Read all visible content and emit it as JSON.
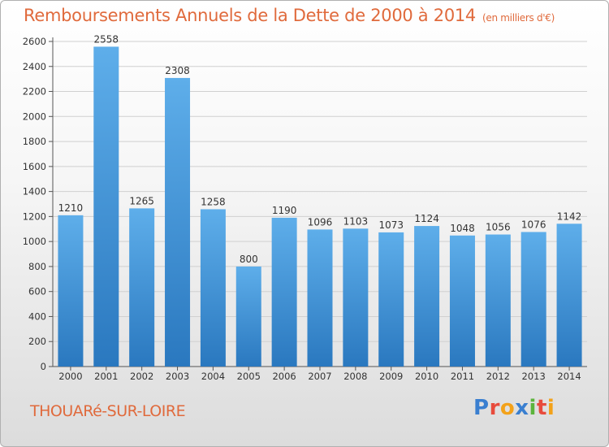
{
  "header": {
    "title": "Remboursements Annuels de la Dette de 2000 à 2014",
    "subtitle": "(en milliers d'€)"
  },
  "footer": {
    "commune": "THOUARé-SUR-LOIRE",
    "logo_letters": [
      "P",
      "r",
      "o",
      "x",
      "i",
      "t",
      "i"
    ]
  },
  "colors": {
    "bar_top": "#5eaeea",
    "bar_bottom": "#2a78bf",
    "title": "#e06a3c"
  },
  "chart_data": {
    "type": "bar",
    "categories": [
      "2000",
      "2001",
      "2002",
      "2003",
      "2004",
      "2005",
      "2006",
      "2007",
      "2008",
      "2009",
      "2010",
      "2011",
      "2012",
      "2013",
      "2014"
    ],
    "values": [
      1210,
      2558,
      1265,
      2308,
      1258,
      800,
      1190,
      1096,
      1103,
      1073,
      1124,
      1048,
      1056,
      1076,
      1142
    ],
    "data_labels": [
      "1210",
      "2558",
      "1265",
      "2308",
      "1258",
      "800",
      "1190",
      "1096",
      "1103",
      "1073",
      "1124",
      "1048",
      "1056",
      "1076",
      "1142"
    ],
    "yticks": [
      "0",
      "200",
      "400",
      "600",
      "800",
      "1000",
      "1200",
      "1400",
      "1600",
      "1800",
      "2000",
      "2200",
      "2400",
      "2600"
    ],
    "ylim": [
      0,
      2600
    ],
    "grid": true,
    "legend": "none"
  }
}
